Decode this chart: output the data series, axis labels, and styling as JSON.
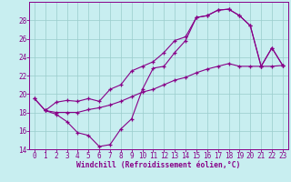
{
  "xlabel": "Windchill (Refroidissement éolien,°C)",
  "bg_color": "#c8eef0",
  "line_color": "#880088",
  "grid_color": "#99cccc",
  "ylim": [
    14,
    30
  ],
  "xlim": [
    -0.5,
    23.5
  ],
  "yticks": [
    14,
    16,
    18,
    20,
    22,
    24,
    26,
    28
  ],
  "xticks": [
    0,
    1,
    2,
    3,
    4,
    5,
    6,
    7,
    8,
    9,
    10,
    11,
    12,
    13,
    14,
    15,
    16,
    17,
    18,
    19,
    20,
    21,
    22,
    23
  ],
  "line1_x": [
    0,
    1,
    2,
    3,
    4,
    5,
    6,
    7,
    8,
    9,
    10,
    11,
    12,
    13,
    14,
    15,
    16,
    17,
    18,
    19,
    20,
    21,
    22,
    23
  ],
  "line1_y": [
    19.5,
    18.2,
    17.8,
    17.0,
    15.8,
    15.5,
    14.3,
    14.5,
    16.2,
    17.3,
    20.5,
    22.8,
    23.0,
    24.5,
    25.8,
    28.3,
    28.5,
    29.1,
    29.2,
    28.5,
    27.4,
    23.0,
    25.0,
    23.1
  ],
  "line2_x": [
    0,
    1,
    2,
    3,
    4,
    5,
    6,
    7,
    8,
    9,
    10,
    11,
    12,
    13,
    14,
    15,
    16,
    17,
    18,
    19,
    20,
    21,
    22,
    23
  ],
  "line2_y": [
    19.5,
    18.2,
    19.1,
    19.3,
    19.2,
    19.5,
    19.2,
    20.5,
    21.0,
    22.5,
    23.0,
    23.5,
    24.5,
    25.8,
    26.2,
    28.3,
    28.5,
    29.1,
    29.2,
    28.5,
    27.4,
    23.0,
    25.0,
    23.1
  ],
  "line3_x": [
    1,
    2,
    3,
    4,
    5,
    6,
    7,
    8,
    9,
    10,
    11,
    12,
    13,
    14,
    15,
    16,
    17,
    18,
    19,
    20,
    21,
    22,
    23
  ],
  "line3_y": [
    18.2,
    18.0,
    18.0,
    18.0,
    18.3,
    18.5,
    18.8,
    19.2,
    19.7,
    20.2,
    20.5,
    21.0,
    21.5,
    21.8,
    22.3,
    22.7,
    23.0,
    23.3,
    23.0,
    23.0,
    23.0,
    23.0,
    23.1
  ],
  "tick_fontsize": 5.5,
  "xlabel_fontsize": 5.8,
  "marker_size": 3.5,
  "line_width": 0.8
}
